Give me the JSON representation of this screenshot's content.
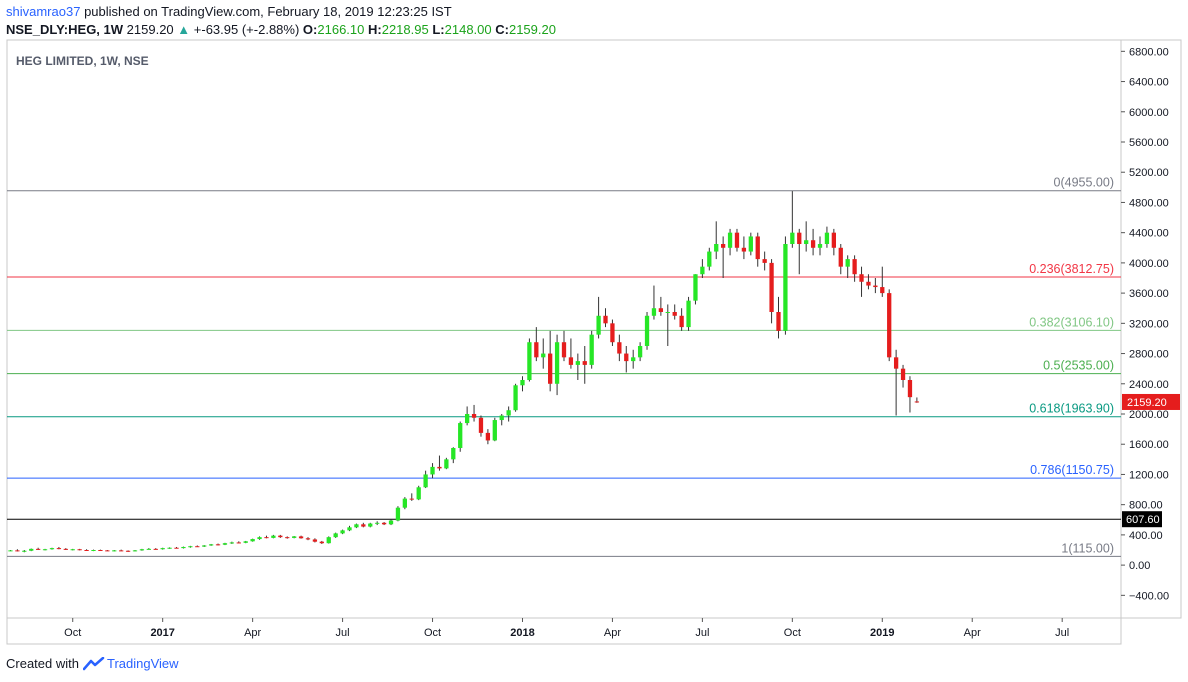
{
  "header": {
    "author": "shivamrao37",
    "published_text": "published on TradingView.com, February 18, 2019 12:23:25 IST",
    "symbol": "NSE_DLY:HEG, 1W",
    "last": "2159.20",
    "change": "+-63.95 (+-2.88%)",
    "open_label": "O:",
    "open": "2166.10",
    "high_label": "H:",
    "high": "2218.95",
    "low_label": "L:",
    "low": "2148.00",
    "close_label": "C:",
    "close": "2159.20"
  },
  "footer": {
    "created_with": "Created with",
    "brand": "TradingView"
  },
  "colors": {
    "up": "#26e626",
    "down": "#e51d1d",
    "brand": "#2962ff"
  },
  "chart_data": {
    "type": "candlestick",
    "title": "HEG LIMITED, 1W, NSE",
    "ylim": [
      -700,
      6950
    ],
    "y_ticks": [
      -400,
      0,
      400,
      800,
      1200,
      1600,
      2000,
      2400,
      2800,
      3200,
      3600,
      4000,
      4400,
      4800,
      5200,
      5600,
      6000,
      6400,
      6800
    ],
    "y_tick_labels": [
      "−400.00",
      "0.00",
      "400.00",
      "800.00",
      "1200.00",
      "1600.00",
      "2000.00",
      "2400.00",
      "2800.00",
      "3200.00",
      "3600.00",
      "4000.00",
      "4400.00",
      "4800.00",
      "5200.00",
      "5600.00",
      "6000.00",
      "6400.00",
      "6800.00"
    ],
    "x_ticks": [
      {
        "label": "Oct",
        "week": 9
      },
      {
        "label": "2017",
        "week": 22
      },
      {
        "label": "Apr",
        "week": 35
      },
      {
        "label": "Jul",
        "week": 48
      },
      {
        "label": "Oct",
        "week": 61
      },
      {
        "label": "2018",
        "week": 74
      },
      {
        "label": "Apr",
        "week": 87
      },
      {
        "label": "Jul",
        "week": 100
      },
      {
        "label": "Oct",
        "week": 113
      },
      {
        "label": "2019",
        "week": 126
      },
      {
        "label": "Apr",
        "week": 139
      },
      {
        "label": "Jul",
        "week": 152
      }
    ],
    "x_range_weeks": [
      -0.5,
      160.5
    ],
    "fib_levels": [
      {
        "ratio": "0",
        "value": 4955.0,
        "label": "0(4955.00)",
        "color": "#787b86"
      },
      {
        "ratio": "0.236",
        "value": 3812.75,
        "label": "0.236(3812.75)",
        "color": "#f23645"
      },
      {
        "ratio": "0.382",
        "value": 3106.1,
        "label": "0.382(3106.10)",
        "color": "#81c784"
      },
      {
        "ratio": "0.5",
        "value": 2535.0,
        "label": "0.5(2535.00)",
        "color": "#4caf50"
      },
      {
        "ratio": "0.618",
        "value": 1963.9,
        "label": "0.618(1963.90)",
        "color": "#089981"
      },
      {
        "ratio": "0.786",
        "value": 1150.75,
        "label": "0.786(1150.75)",
        "color": "#2962ff"
      },
      {
        "ratio": "1",
        "value": 115.0,
        "label": "1(115.00)",
        "color": "#787b86"
      }
    ],
    "horizontal_line": {
      "value": 607.6,
      "label": "607.60",
      "color": "#000000"
    },
    "last_price": {
      "value": 2159.2,
      "label": "2159.20",
      "color": "#e51d1d"
    },
    "candles": [
      [
        190,
        200,
        185,
        195
      ],
      [
        195,
        210,
        180,
        185
      ],
      [
        185,
        200,
        170,
        190
      ],
      [
        190,
        220,
        185,
        215
      ],
      [
        215,
        230,
        200,
        205
      ],
      [
        205,
        215,
        195,
        210
      ],
      [
        210,
        230,
        205,
        225
      ],
      [
        225,
        240,
        210,
        215
      ],
      [
        215,
        225,
        200,
        205
      ],
      [
        205,
        215,
        195,
        210
      ],
      [
        210,
        215,
        195,
        200
      ],
      [
        200,
        210,
        190,
        195
      ],
      [
        195,
        205,
        185,
        200
      ],
      [
        200,
        205,
        190,
        195
      ],
      [
        195,
        200,
        185,
        190
      ],
      [
        190,
        200,
        180,
        195
      ],
      [
        195,
        205,
        185,
        190
      ],
      [
        190,
        195,
        175,
        185
      ],
      [
        185,
        200,
        180,
        195
      ],
      [
        195,
        215,
        190,
        210
      ],
      [
        210,
        225,
        205,
        215
      ],
      [
        215,
        225,
        205,
        210
      ],
      [
        210,
        230,
        205,
        225
      ],
      [
        225,
        235,
        215,
        230
      ],
      [
        230,
        240,
        220,
        225
      ],
      [
        225,
        245,
        220,
        240
      ],
      [
        240,
        255,
        230,
        250
      ],
      [
        250,
        260,
        240,
        245
      ],
      [
        245,
        265,
        240,
        260
      ],
      [
        260,
        280,
        255,
        275
      ],
      [
        275,
        285,
        260,
        270
      ],
      [
        270,
        295,
        265,
        290
      ],
      [
        290,
        310,
        280,
        300
      ],
      [
        300,
        315,
        290,
        295
      ],
      [
        295,
        320,
        290,
        315
      ],
      [
        315,
        350,
        310,
        345
      ],
      [
        345,
        380,
        335,
        370
      ],
      [
        370,
        390,
        355,
        360
      ],
      [
        360,
        400,
        355,
        390
      ],
      [
        390,
        400,
        360,
        370
      ],
      [
        370,
        380,
        350,
        360
      ],
      [
        360,
        385,
        355,
        380
      ],
      [
        380,
        390,
        350,
        355
      ],
      [
        355,
        370,
        330,
        340
      ],
      [
        340,
        355,
        300,
        310
      ],
      [
        310,
        320,
        280,
        290
      ],
      [
        290,
        380,
        285,
        370
      ],
      [
        370,
        430,
        360,
        420
      ],
      [
        420,
        470,
        410,
        460
      ],
      [
        460,
        520,
        450,
        500
      ],
      [
        500,
        550,
        490,
        540
      ],
      [
        540,
        560,
        500,
        510
      ],
      [
        510,
        560,
        500,
        550
      ],
      [
        550,
        580,
        530,
        560
      ],
      [
        560,
        570,
        530,
        540
      ],
      [
        540,
        600,
        530,
        590
      ],
      [
        590,
        780,
        580,
        760
      ],
      [
        760,
        900,
        740,
        880
      ],
      [
        880,
        950,
        850,
        870
      ],
      [
        870,
        1050,
        860,
        1030
      ],
      [
        1030,
        1250,
        1020,
        1200
      ],
      [
        1200,
        1350,
        1150,
        1300
      ],
      [
        1300,
        1450,
        1250,
        1280
      ],
      [
        1280,
        1420,
        1270,
        1400
      ],
      [
        1400,
        1560,
        1350,
        1550
      ],
      [
        1550,
        1900,
        1500,
        1880
      ],
      [
        1880,
        2100,
        1850,
        2000
      ],
      [
        2000,
        2120,
        1900,
        1950
      ],
      [
        1950,
        1980,
        1700,
        1750
      ],
      [
        1750,
        1800,
        1600,
        1650
      ],
      [
        1650,
        1950,
        1640,
        1920
      ],
      [
        1920,
        2000,
        1850,
        1980
      ],
      [
        1980,
        2100,
        1900,
        2050
      ],
      [
        2050,
        2400,
        2030,
        2380
      ],
      [
        2380,
        2500,
        2300,
        2450
      ],
      [
        2450,
        3000,
        2430,
        2950
      ],
      [
        2950,
        3150,
        2700,
        2750
      ],
      [
        2750,
        3000,
        2600,
        2800
      ],
      [
        2800,
        3100,
        2300,
        2400
      ],
      [
        2400,
        3050,
        2250,
        2950
      ],
      [
        2950,
        3100,
        2700,
        2750
      ],
      [
        2750,
        3000,
        2600,
        2650
      ],
      [
        2650,
        2800,
        2450,
        2700
      ],
      [
        2700,
        2900,
        2400,
        2650
      ],
      [
        2650,
        3100,
        2600,
        3050
      ],
      [
        3050,
        3550,
        3000,
        3300
      ],
      [
        3300,
        3400,
        3150,
        3200
      ],
      [
        3200,
        3250,
        2900,
        2950
      ],
      [
        2950,
        3050,
        2700,
        2800
      ],
      [
        2800,
        2900,
        2550,
        2700
      ],
      [
        2700,
        2850,
        2600,
        2750
      ],
      [
        2750,
        2950,
        2700,
        2900
      ],
      [
        2900,
        3350,
        2850,
        3300
      ],
      [
        3300,
        3700,
        3250,
        3400
      ],
      [
        3400,
        3550,
        3300,
        3350
      ],
      [
        3350,
        3450,
        2900,
        3350
      ],
      [
        3350,
        3450,
        3250,
        3300
      ],
      [
        3300,
        3400,
        3100,
        3150
      ],
      [
        3150,
        3550,
        3100,
        3500
      ],
      [
        3500,
        3850,
        3450,
        3850
      ],
      [
        3850,
        4050,
        3800,
        3950
      ],
      [
        3950,
        4200,
        3900,
        4150
      ],
      [
        4150,
        4550,
        4050,
        4250
      ],
      [
        4250,
        4350,
        3800,
        4200
      ],
      [
        4200,
        4450,
        4100,
        4400
      ],
      [
        4400,
        4450,
        4150,
        4200
      ],
      [
        4200,
        4350,
        4050,
        4150
      ],
      [
        4150,
        4400,
        4100,
        4350
      ],
      [
        4350,
        4400,
        3950,
        4050
      ],
      [
        4050,
        4150,
        3900,
        4000
      ],
      [
        4000,
        4050,
        3200,
        3350
      ],
      [
        3350,
        3550,
        3000,
        3100
      ],
      [
        3100,
        4350,
        3050,
        4250
      ],
      [
        4250,
        4950,
        4200,
        4400
      ],
      [
        4400,
        4450,
        3850,
        4250
      ],
      [
        4250,
        4550,
        4150,
        4300
      ],
      [
        4300,
        4450,
        4100,
        4200
      ],
      [
        4200,
        4350,
        4100,
        4250
      ],
      [
        4250,
        4480,
        4200,
        4400
      ],
      [
        4400,
        4450,
        4100,
        4200
      ],
      [
        4200,
        4250,
        3850,
        3950
      ],
      [
        3950,
        4100,
        3800,
        4050
      ],
      [
        4050,
        4100,
        3750,
        3850
      ],
      [
        3850,
        3950,
        3550,
        3750
      ],
      [
        3750,
        3850,
        3650,
        3700
      ],
      [
        3700,
        3800,
        3600,
        3680
      ],
      [
        3680,
        3950,
        3550,
        3600
      ],
      [
        3600,
        3650,
        2700,
        2750
      ],
      [
        2750,
        2850,
        1980,
        2600
      ],
      [
        2600,
        2650,
        2350,
        2450
      ],
      [
        2450,
        2500,
        2020,
        2223
      ],
      [
        2166,
        2219,
        2148,
        2159
      ]
    ]
  }
}
